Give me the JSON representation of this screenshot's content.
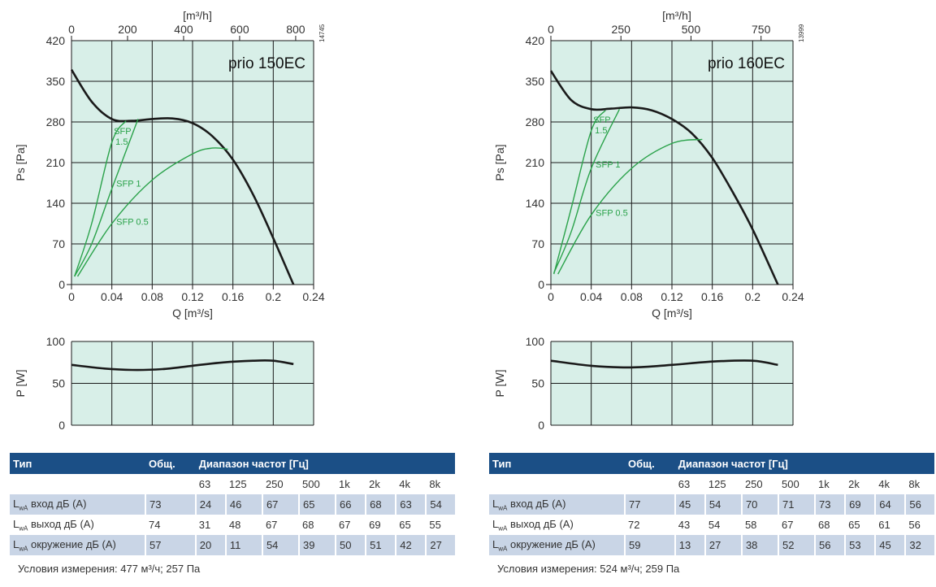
{
  "panels": [
    {
      "model": "prio 150EC",
      "serial": "14745",
      "top_axis_unit": "[m³/h]",
      "top_ticks": [
        "0",
        "200",
        "400",
        "600",
        "800"
      ],
      "ps_label": "Ps [Pa]",
      "p_label": "P [W]",
      "q_label": "Q [m³/s]",
      "conditions": "Условия измерения: 477 м³/ч; 257 Па",
      "table": {
        "header": {
          "type": "Тип",
          "total": "Общ.",
          "range": "Диапазон частот [Гц]"
        },
        "bands": [
          "63",
          "125",
          "250",
          "500",
          "1k",
          "2k",
          "4k",
          "8k"
        ],
        "rows": [
          {
            "name": "LwA вход дБ (А)",
            "total": "73",
            "values": [
              "24",
              "46",
              "67",
              "65",
              "66",
              "68",
              "63",
              "54"
            ]
          },
          {
            "name": "LwA выход дБ (А)",
            "total": "74",
            "values": [
              "31",
              "48",
              "67",
              "68",
              "67",
              "69",
              "65",
              "55"
            ]
          },
          {
            "name": "LwA окружение дБ (А)",
            "total": "57",
            "values": [
              "20",
              "11",
              "54",
              "39",
              "50",
              "51",
              "42",
              "27"
            ]
          }
        ]
      }
    },
    {
      "model": "prio 160EC",
      "serial": "13999",
      "top_axis_unit": "[m³/h]",
      "top_ticks": [
        "0",
        "250",
        "500",
        "750"
      ],
      "ps_label": "Ps [Pa]",
      "p_label": "P [W]",
      "q_label": "Q [m³/s]",
      "conditions": "Условия измерения: 524 м³/ч; 259 Па",
      "table": {
        "header": {
          "type": "Тип",
          "total": "Общ.",
          "range": "Диапазон частот [Гц]"
        },
        "bands": [
          "63",
          "125",
          "250",
          "500",
          "1k",
          "2k",
          "4k",
          "8k"
        ],
        "rows": [
          {
            "name": "LwA вход дБ (А)",
            "total": "77",
            "values": [
              "45",
              "54",
              "70",
              "71",
              "73",
              "69",
              "64",
              "56"
            ]
          },
          {
            "name": "LwA выход дБ (А)",
            "total": "72",
            "values": [
              "43",
              "54",
              "58",
              "67",
              "68",
              "65",
              "61",
              "56"
            ]
          },
          {
            "name": "LwA окружение дБ (А)",
            "total": "59",
            "values": [
              "13",
              "27",
              "38",
              "52",
              "56",
              "53",
              "45",
              "32"
            ]
          }
        ]
      }
    }
  ],
  "colors": {
    "plot_bg": "#d8efe8",
    "grid": "#1a1a1a",
    "fan_curve": "#1a1a1a",
    "sfp_curve": "#2aa24a",
    "table_header": "#1b4f86",
    "table_shade": "#c9d5e6"
  },
  "chart_data": [
    {
      "type": "line",
      "title": "prio 150EC",
      "xlabel": "Q [m³/s]",
      "ylabel": "Ps [Pa]",
      "xlim": [
        0,
        0.24
      ],
      "ylim": [
        0,
        420
      ],
      "x_ticks": [
        "0",
        "0.04",
        "0.08",
        "0.12",
        "0.16",
        "0.2",
        "0.24"
      ],
      "y_ticks": [
        "0",
        "70",
        "140",
        "210",
        "280",
        "350",
        "420"
      ],
      "secondary_x": {
        "label": "[m³/h]",
        "lim": [
          0,
          864
        ],
        "ticks": [
          0,
          200,
          400,
          600,
          800
        ]
      },
      "grid": true,
      "series": [
        {
          "kind": "fan",
          "x": [
            0.0,
            0.02,
            0.04,
            0.06,
            0.08,
            0.1,
            0.12,
            0.14,
            0.16,
            0.18,
            0.2,
            0.22
          ],
          "y": [
            370,
            315,
            285,
            282,
            285,
            286,
            278,
            255,
            215,
            155,
            80,
            0
          ]
        },
        {
          "name": "SFP 1.5",
          "kind": "sfp",
          "x": [
            0.003,
            0.02,
            0.04,
            0.054
          ],
          "y": [
            14,
            105,
            245,
            282
          ]
        },
        {
          "name": "SFP 1",
          "kind": "sfp",
          "x": [
            0.003,
            0.02,
            0.04,
            0.066
          ],
          "y": [
            14,
            70,
            165,
            285
          ]
        },
        {
          "name": "SFP 0.5",
          "kind": "sfp",
          "x": [
            0.006,
            0.04,
            0.08,
            0.12,
            0.14,
            0.155
          ],
          "y": [
            14,
            105,
            180,
            225,
            235,
            233
          ]
        }
      ],
      "annotations": [
        "SFP 1.5",
        "SFP 1",
        "SFP 0.5"
      ]
    },
    {
      "type": "line",
      "title": "prio 150EC",
      "xlabel": "",
      "ylabel": "P [W]",
      "xlim": [
        0,
        0.24
      ],
      "ylim": [
        0,
        100
      ],
      "y_ticks": [
        "0",
        "50",
        "100"
      ],
      "grid": true,
      "series": [
        {
          "kind": "power",
          "x": [
            0.0,
            0.03,
            0.06,
            0.09,
            0.12,
            0.15,
            0.18,
            0.2,
            0.22
          ],
          "y": [
            72,
            68,
            66,
            67,
            71,
            75,
            77,
            77,
            73
          ]
        }
      ]
    },
    {
      "type": "line",
      "title": "prio 160EC",
      "xlabel": "Q [m³/s]",
      "ylabel": "Ps [Pa]",
      "xlim": [
        0,
        0.24
      ],
      "ylim": [
        0,
        420
      ],
      "x_ticks": [
        "0",
        "0.04",
        "0.08",
        "0.12",
        "0.16",
        "0.2",
        "0.24"
      ],
      "y_ticks": [
        "0",
        "70",
        "140",
        "210",
        "280",
        "350",
        "420"
      ],
      "secondary_x": {
        "label": "[m³/h]",
        "lim": [
          0,
          864
        ],
        "ticks": [
          0,
          250,
          500,
          750
        ]
      },
      "grid": true,
      "series": [
        {
          "kind": "fan",
          "x": [
            0.0,
            0.02,
            0.04,
            0.06,
            0.08,
            0.1,
            0.12,
            0.14,
            0.16,
            0.18,
            0.2,
            0.225
          ],
          "y": [
            368,
            318,
            302,
            303,
            305,
            300,
            285,
            260,
            218,
            160,
            95,
            0
          ]
        },
        {
          "name": "SFP 1.5",
          "kind": "sfp",
          "x": [
            0.003,
            0.02,
            0.04,
            0.054
          ],
          "y": [
            18,
            130,
            265,
            300
          ]
        },
        {
          "name": "SFP 1",
          "kind": "sfp",
          "x": [
            0.003,
            0.02,
            0.04,
            0.068
          ],
          "y": [
            20,
            90,
            200,
            302
          ]
        },
        {
          "name": "SFP 0.5",
          "kind": "sfp",
          "x": [
            0.007,
            0.04,
            0.08,
            0.12,
            0.15
          ],
          "y": [
            18,
            120,
            200,
            243,
            250
          ]
        }
      ],
      "annotations": [
        "SFP 1.5",
        "SFP 1",
        "SFP 0.5"
      ]
    },
    {
      "type": "line",
      "title": "prio 160EC",
      "xlabel": "",
      "ylabel": "P [W]",
      "xlim": [
        0,
        0.24
      ],
      "ylim": [
        0,
        100
      ],
      "y_ticks": [
        "0",
        "50",
        "100"
      ],
      "grid": true,
      "series": [
        {
          "kind": "power",
          "x": [
            0.0,
            0.04,
            0.08,
            0.12,
            0.16,
            0.2,
            0.225
          ],
          "y": [
            77,
            71,
            69,
            72,
            76,
            77,
            72
          ]
        }
      ]
    }
  ]
}
